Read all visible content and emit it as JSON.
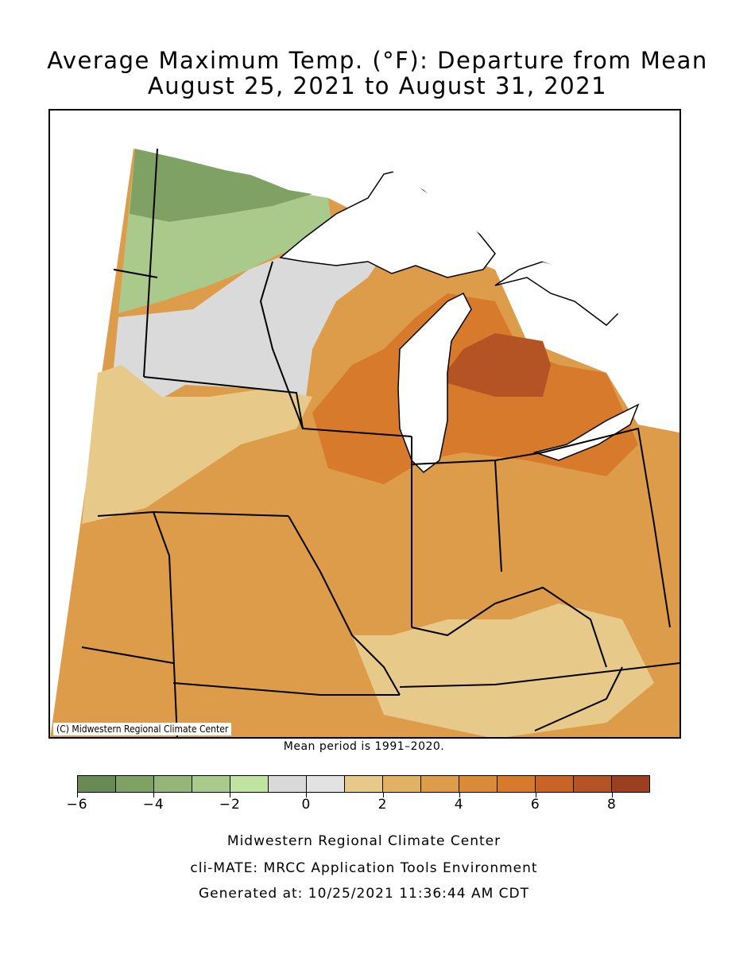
{
  "title_line1": "Average Maximum Temp. (°F): Departure from Mean",
  "title_line2": "August 25, 2021 to August 31, 2021",
  "copyright": "(C) Midwestern Regional Climate Center",
  "mean_note": "Mean period is 1991–2020.",
  "legend": {
    "colors": [
      "#6a8a55",
      "#7fa264",
      "#95b579",
      "#a9ca8a",
      "#c0e3a2",
      "#d9d9d9",
      "#e2e2e2",
      "#e7c98a",
      "#e2b264",
      "#dd9c4a",
      "#da8b38",
      "#d77a2c",
      "#c96426",
      "#b45324",
      "#9a4020"
    ],
    "min": -6,
    "max": 9,
    "labels": [
      "−6",
      "−4",
      "−2",
      "0",
      "2",
      "4",
      "6",
      "8"
    ],
    "label_values": [
      -6,
      -4,
      -2,
      0,
      2,
      4,
      6,
      8
    ]
  },
  "footer": {
    "line1": "Midwestern Regional Climate Center",
    "line2": "cli-MATE: MRCC Application Tools Environment",
    "line3": "Generated at: 10/25/2021 11:36:44 AM CDT"
  }
}
